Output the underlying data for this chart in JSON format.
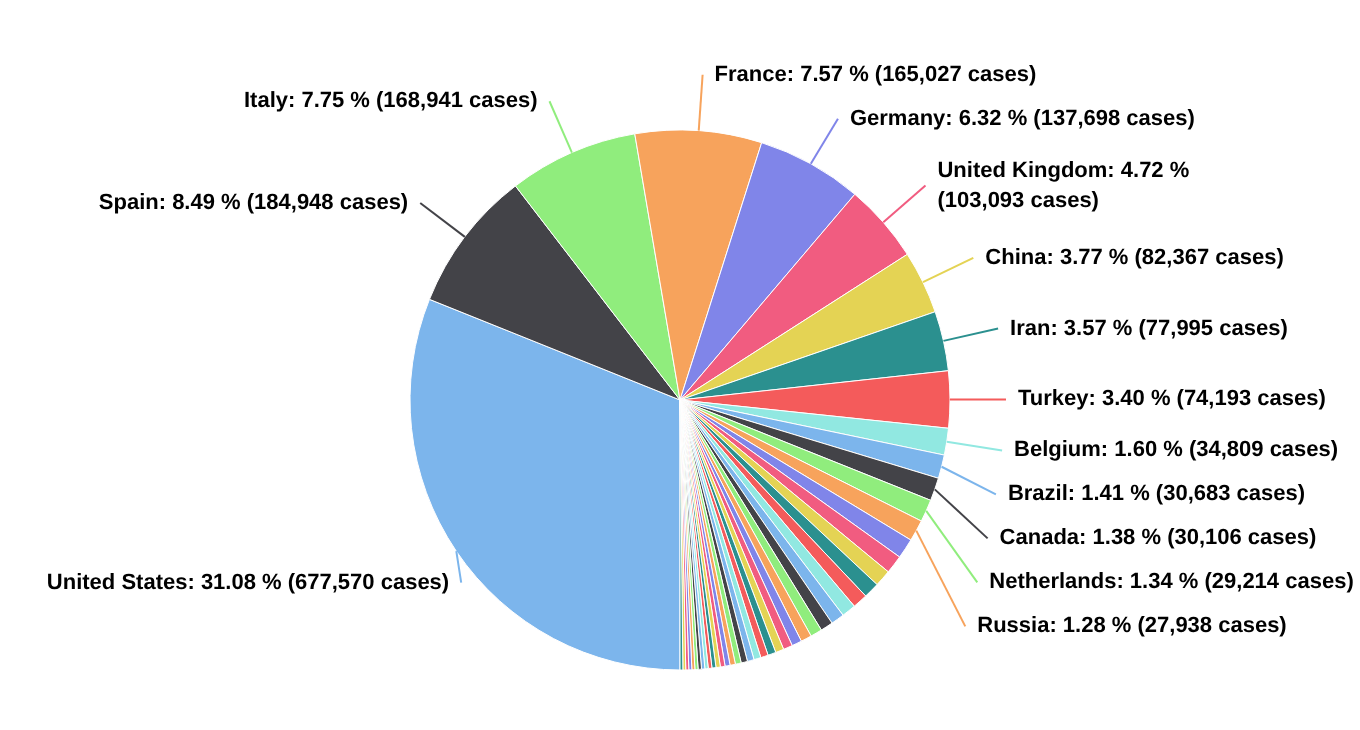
{
  "chart_data": {
    "type": "pie",
    "categories": [
      "United States",
      "Spain",
      "Italy",
      "France",
      "Germany",
      "United Kingdom",
      "China",
      "Iran",
      "Turkey",
      "Belgium",
      "Brazil",
      "Canada",
      "Netherlands",
      "Russia",
      null,
      null,
      null,
      null,
      null,
      null,
      null,
      null,
      null,
      null,
      null,
      null,
      null,
      null,
      null,
      null,
      null,
      null,
      null,
      null,
      null,
      null,
      null,
      null,
      null,
      null,
      null,
      null,
      null,
      null,
      null,
      null,
      null,
      null
    ],
    "values": [
      31.08,
      8.49,
      7.75,
      7.57,
      6.32,
      4.72,
      3.77,
      3.57,
      3.4,
      1.6,
      1.41,
      1.38,
      1.34,
      1.28,
      1.2,
      1.1,
      1.0,
      0.95,
      0.9,
      0.85,
      0.8,
      0.75,
      0.7,
      0.65,
      0.6,
      0.55,
      0.5,
      0.48,
      0.45,
      0.42,
      0.4,
      0.38,
      0.35,
      0.32,
      0.3,
      0.28,
      0.26,
      0.24,
      0.22,
      0.2,
      0.2,
      0.2,
      0.19,
      0.18,
      0.18,
      0.18,
      0.17,
      0.17
    ],
    "colors": [
      "#7cb5ec",
      "#434348",
      "#90ed7d",
      "#f7a35c",
      "#8085e9",
      "#f15c80",
      "#e4d354",
      "#2b908f",
      "#f45b5b",
      "#91e8e1",
      "#7cb5ec",
      "#434348",
      "#90ed7d",
      "#f7a35c",
      "#8085e9",
      "#f15c80",
      "#e4d354",
      "#2b908f",
      "#f45b5b",
      "#91e8e1",
      "#7cb5ec",
      "#434348",
      "#90ed7d",
      "#f7a35c",
      "#8085e9",
      "#f15c80",
      "#e4d354",
      "#2b908f",
      "#f45b5b",
      "#91e8e1",
      "#7cb5ec",
      "#434348",
      "#90ed7d",
      "#f7a35c",
      "#8085e9",
      "#f15c80",
      "#e4d354",
      "#2b908f",
      "#f45b5b",
      "#91e8e1",
      "#7cb5ec",
      "#434348",
      "#90ed7d",
      "#f7a35c",
      "#8085e9",
      "#f15c80",
      "#e4d354",
      "#2b908f"
    ],
    "value_labels": [
      "31.08 % (677,570 cases)",
      "8.49 % (184,948 cases)",
      "7.75 % (168,941 cases)",
      "7.57 % (165,027 cases)",
      "6.32 % (137,698 cases)",
      "4.72 % (103,093 cases)",
      "3.77 % (82,367 cases)",
      "3.57 % (77,995 cases)",
      "3.40 % (74,193 cases)",
      "1.60 % (34,809 cases)",
      "1.41 % (30,683 cases)",
      "1.38 % (30,106 cases)",
      "1.34 % (29,214 cases)",
      "1.28 % (27,938 cases)",
      null,
      null,
      null,
      null,
      null,
      null,
      null,
      null,
      null,
      null,
      null,
      null,
      null,
      null,
      null,
      null,
      null,
      null,
      null,
      null,
      null,
      null,
      null,
      null,
      null,
      null,
      null,
      null,
      null,
      null,
      null,
      null,
      null,
      null
    ]
  }
}
